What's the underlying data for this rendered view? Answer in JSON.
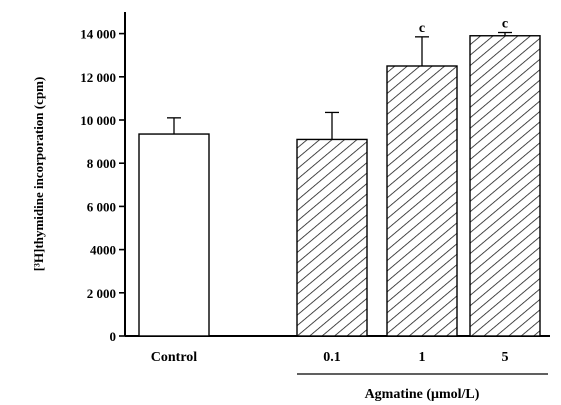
{
  "chart_data": {
    "type": "bar",
    "title": "",
    "ylabel": "[³H]thymidine incorporation (cpm)",
    "xlabel": "Agmatine (μmol/L)",
    "ylim": [
      0,
      15000
    ],
    "yticks": [
      {
        "value": 0,
        "label": "0"
      },
      {
        "value": 2000,
        "label": "2 000"
      },
      {
        "value": 4000,
        "label": "4000"
      },
      {
        "value": 6000,
        "label": "6 000"
      },
      {
        "value": 8000,
        "label": "8 000"
      },
      {
        "value": 10000,
        "label": "10 000"
      },
      {
        "value": 12000,
        "label": "12 000"
      },
      {
        "value": 14000,
        "label": "14 000"
      }
    ],
    "categories": [
      "Control",
      "0.1",
      "1",
      "5"
    ],
    "values": [
      9350,
      9100,
      12500,
      13900
    ],
    "errors": [
      750,
      1250,
      1350,
      150
    ],
    "annotations": [
      "",
      "",
      "c",
      "c"
    ],
    "fill_patterns": [
      "open",
      "hatched",
      "hatched",
      "hatched"
    ],
    "group_label_under": [
      "0.1",
      "1",
      "5"
    ]
  }
}
